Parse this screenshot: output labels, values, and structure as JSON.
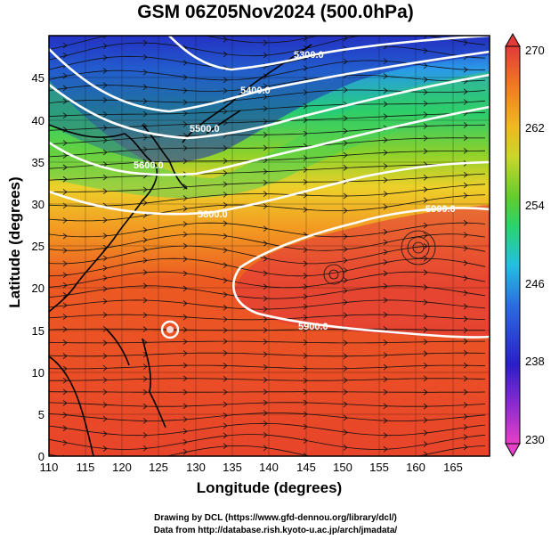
{
  "title": "GSM 06Z05Nov2024 (500.0hPa)",
  "xlabel": "Longitude (degrees)",
  "ylabel": "Latitude  (degrees)",
  "credits": {
    "line1": "Drawing by DCL (https://www.gfd-dennou.org/library/dcl/)",
    "line2": "Data from http://database.rish.kyoto-u.ac.jp/arch/jmadata/"
  },
  "map": {
    "type": "geopotential-height-temperature-wind",
    "xlim": [
      110,
      170
    ],
    "ylim": [
      0,
      50
    ],
    "xticks": [
      "110",
      "115",
      "120",
      "125",
      "130",
      "135",
      "140",
      "145",
      "150",
      "155",
      "160",
      "165"
    ],
    "yticks": [
      "0",
      "5",
      "10",
      "15",
      "20",
      "25",
      "30",
      "35",
      "40",
      "45"
    ],
    "contour_labels": [
      "5300.0",
      "5400.0",
      "5500.0",
      "5600.0",
      "5800.0",
      "5900.0",
      "5900.0"
    ],
    "colorbar": {
      "ticks": [
        "230",
        "238",
        "246",
        "254",
        "262",
        "270"
      ],
      "min": 230,
      "max": 270,
      "colors": [
        "#e83fc8",
        "#8a2ad0",
        "#2a1ec8",
        "#2b6ee0",
        "#23c0e0",
        "#2ad46a",
        "#62cc2c",
        "#c8d62a",
        "#f0b820",
        "#f07a20",
        "#e8441e",
        "#e23a3a"
      ]
    }
  }
}
